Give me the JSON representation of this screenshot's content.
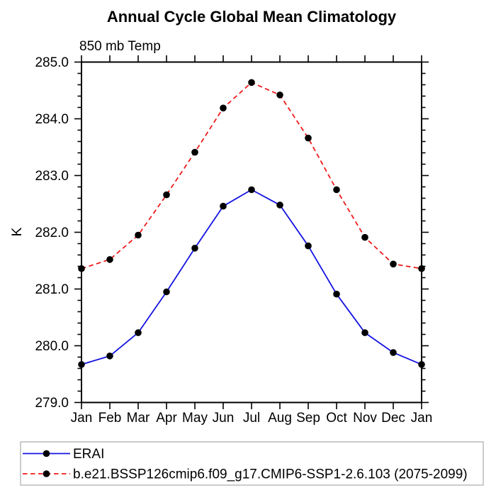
{
  "header": {
    "title": "Annual Cycle Global Mean Climatology",
    "subtitle": "850 mb Temp"
  },
  "y_axis": {
    "unit": "K",
    "tick_labels": [
      "279.0",
      "280.0",
      "281.0",
      "282.0",
      "283.0",
      "284.0",
      "285.0"
    ]
  },
  "x_axis": {
    "tick_labels": [
      "Jan",
      "Feb",
      "Mar",
      "Apr",
      "May",
      "Jun",
      "Jul",
      "Aug",
      "Sep",
      "Oct",
      "Nov",
      "Dec",
      "Jan"
    ]
  },
  "colors": {
    "erai": "#1414e1",
    "model": "#ee1b1b",
    "marker": "#000000",
    "axis": "#000000",
    "legend_border": "#aaaaaa",
    "background": "#ffffff"
  },
  "legend": {
    "items": [
      {
        "label": "ERAI",
        "line_style": "solid",
        "color_key": "erai"
      },
      {
        "label": "b.e21.BSSP126cmip6.f09_g17.CMIP6-SSP1-2.6.103 (2075-2099)",
        "line_style": "dashed",
        "color_key": "model"
      }
    ]
  },
  "chart_data": {
    "type": "line",
    "title": "Annual Cycle Global Mean Climatology",
    "subtitle": "850 mb Temp",
    "xlabel": "",
    "ylabel": "K",
    "categories": [
      "Jan",
      "Feb",
      "Mar",
      "Apr",
      "May",
      "Jun",
      "Jul",
      "Aug",
      "Sep",
      "Oct",
      "Nov",
      "Dec",
      "Jan"
    ],
    "series": [
      {
        "name": "ERAI",
        "line_style": "solid",
        "color": "#1414e1",
        "marker": "filled-circle",
        "marker_color": "#000000",
        "values": [
          279.67,
          279.82,
          280.23,
          280.95,
          281.72,
          282.46,
          282.75,
          282.48,
          281.76,
          280.91,
          280.23,
          279.88,
          279.67
        ]
      },
      {
        "name": "b.e21.BSSP126cmip6.f09_g17.CMIP6-SSP1-2.6.103 (2075-2099)",
        "line_style": "dashed",
        "color": "#ee1b1b",
        "marker": "filled-circle",
        "marker_color": "#000000",
        "values": [
          281.36,
          281.52,
          281.95,
          282.66,
          283.41,
          284.19,
          284.64,
          284.42,
          283.66,
          282.75,
          281.91,
          281.44,
          281.36
        ]
      }
    ],
    "ylim": [
      279.0,
      285.0
    ],
    "y_major_step": 1.0,
    "y_minor_step": 0.2,
    "grid": false,
    "legend_position": "bottom-left-outside-box"
  }
}
